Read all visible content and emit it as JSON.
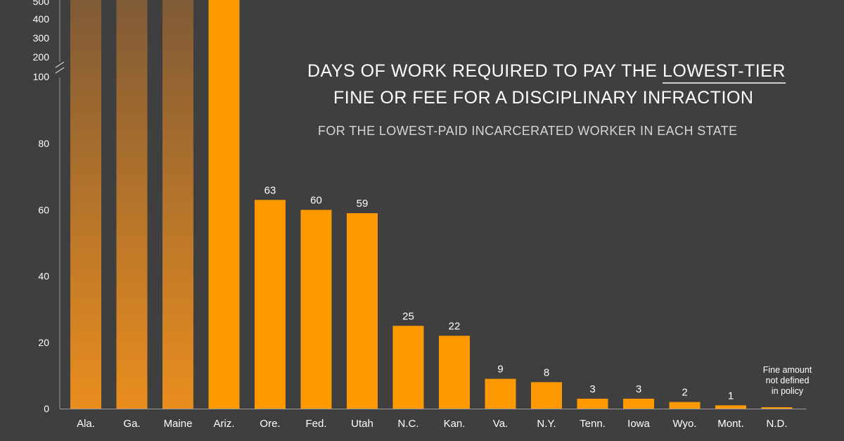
{
  "chart_data": {
    "type": "bar",
    "title_line1_part1": "DAYS OF WORK REQUIRED TO PAY THE ",
    "title_line1_emphasis": "LOWEST-TIER",
    "title_line2": "FINE OR FEE FOR A DISCIPLINARY INFRACTION",
    "subtitle": "FOR THE LOWEST-PAID INCARCERATED WORKER IN EACH STATE",
    "categories": [
      "Ala.",
      "Ga.",
      "Maine",
      "Ariz.",
      "Ore.",
      "Fed.",
      "Utah",
      "N.C.",
      "Kan.",
      "Va.",
      "N.Y.",
      "Tenn.",
      "Iowa",
      "Wyo.",
      "Mont.",
      "N.D."
    ],
    "values": [
      null,
      null,
      null,
      null,
      63,
      60,
      59,
      25,
      22,
      9,
      8,
      3,
      3,
      2,
      1,
      null
    ],
    "data_labels": [
      "",
      "",
      "",
      "",
      "63",
      "60",
      "59",
      "25",
      "22",
      "9",
      "8",
      "3",
      "3",
      "2",
      "1",
      ""
    ],
    "exceeds_axis_break": [
      true,
      true,
      true,
      true,
      false,
      false,
      false,
      false,
      false,
      false,
      false,
      false,
      false,
      false,
      false,
      false
    ],
    "gradient_bars": [
      true,
      true,
      true,
      false,
      false,
      false,
      false,
      false,
      false,
      false,
      false,
      false,
      false,
      false,
      false,
      false
    ],
    "yticks_lower": [
      0,
      20,
      40,
      60,
      80
    ],
    "yticks_upper": [
      100,
      200,
      300,
      400,
      500
    ],
    "ytick_labels_lower": [
      "0",
      "20",
      "40",
      "60",
      "80"
    ],
    "ytick_labels_upper": [
      "100",
      "200",
      "300",
      "400",
      "500"
    ],
    "axis_break": true,
    "ylim": [
      0,
      500
    ],
    "grid": false,
    "annotations": [
      {
        "category": "N.D.",
        "lines": [
          "Fine amount",
          "not defined",
          "in policy"
        ]
      }
    ],
    "colors": {
      "bar": "#ff9900",
      "gradient_top": "#7f5a37",
      "gradient_bottom": "#e98d1e",
      "background": "#3f3f3f",
      "text": "#ffffff",
      "subtitle": "#d6d6d6"
    }
  }
}
